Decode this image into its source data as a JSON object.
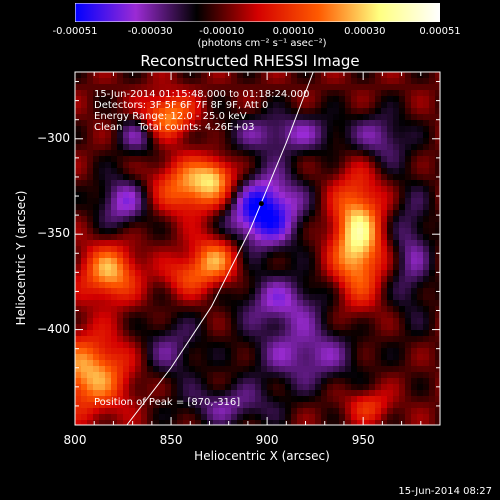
{
  "colorbar": {
    "tick_labels": [
      "-0.00051",
      "-0.00030",
      "-0.00010",
      "0.00010",
      "0.00030",
      "0.00051"
    ],
    "units_label": "(photons cm⁻² s⁻¹ asec⁻²)"
  },
  "chart_data": {
    "type": "heatmap",
    "title": "Reconstructed RHESSI Image",
    "xlabel": "Heliocentric X (arcsec)",
    "ylabel": "Heliocentric Y (arcsec)",
    "xlim": [
      800,
      990
    ],
    "ylim": [
      -450,
      -265
    ],
    "x_ticks": [
      800,
      850,
      900,
      950
    ],
    "y_ticks": [
      -300,
      -350,
      -400
    ],
    "x_tick_labels": [
      "800",
      "850",
      "900",
      "950"
    ],
    "y_tick_labels": [
      "−300",
      "−350",
      "−400"
    ],
    "value_range": [
      -0.00051,
      0.00051
    ],
    "colormap": [
      "#0000ff",
      "#9b2bd4",
      "#000000",
      "#d40000",
      "#ff5a00",
      "#ffff80",
      "#ffffff"
    ],
    "peak_position": [
      870,
      -316
    ],
    "blobs": [
      {
        "x": 848,
        "y": -288,
        "sx": 10,
        "sy": 8,
        "amp": 0.00034
      },
      {
        "x": 865,
        "y": -325,
        "sx": 16,
        "sy": 10,
        "amp": 0.00038
      },
      {
        "x": 873,
        "y": -319,
        "sx": 6,
        "sy": 6,
        "amp": 0.00016
      },
      {
        "x": 818,
        "y": -370,
        "sx": 10,
        "sy": 10,
        "amp": 0.00036
      },
      {
        "x": 873,
        "y": -363,
        "sx": 9,
        "sy": 9,
        "amp": 0.00032
      },
      {
        "x": 858,
        "y": -372,
        "sx": 9,
        "sy": 7,
        "amp": 0.00018
      },
      {
        "x": 947,
        "y": -352,
        "sx": 9,
        "sy": 21,
        "amp": 0.00046
      },
      {
        "x": 808,
        "y": -423,
        "sx": 14,
        "sy": 14,
        "amp": 0.00036
      },
      {
        "x": 953,
        "y": -440,
        "sx": 8,
        "sy": 6,
        "amp": 0.00018
      },
      {
        "x": 897,
        "y": -337,
        "sx": 14,
        "sy": 14,
        "amp": -0.00046
      },
      {
        "x": 825,
        "y": -333,
        "sx": 10,
        "sy": 10,
        "amp": -0.00025
      },
      {
        "x": 910,
        "y": -297,
        "sx": 24,
        "sy": 8,
        "amp": -0.0002
      },
      {
        "x": 960,
        "y": -300,
        "sx": 10,
        "sy": 10,
        "amp": -0.00018
      },
      {
        "x": 907,
        "y": -385,
        "sx": 16,
        "sy": 10,
        "amp": -0.00022
      },
      {
        "x": 920,
        "y": -413,
        "sx": 20,
        "sy": 12,
        "amp": -0.00022
      },
      {
        "x": 850,
        "y": -410,
        "sx": 12,
        "sy": 12,
        "amp": -0.00016
      },
      {
        "x": 880,
        "y": -440,
        "sx": 18,
        "sy": 8,
        "amp": -0.00018
      },
      {
        "x": 975,
        "y": -360,
        "sx": 8,
        "sy": 25,
        "amp": -0.00018
      },
      {
        "x": 833,
        "y": -298,
        "sx": 8,
        "sy": 8,
        "amp": -0.0002
      }
    ],
    "limb_curve": [
      [
        827,
        -450
      ],
      [
        850,
        -420
      ],
      [
        871,
        -388
      ],
      [
        891,
        -348
      ],
      [
        910,
        -302
      ],
      [
        924,
        -265
      ]
    ],
    "marker": {
      "x": 897,
      "y": -334
    }
  },
  "info_lines": [
    "15-Jun-2014 01:15:48.000 to 01:18:24.000",
    "Detectors: 3F 5F 6F 7F 8F 9F, Att 0",
    "Energy Range: 12.0 - 25.0 keV",
    "Clean     Total counts: 4.26E+03"
  ],
  "peak_label": "Position of Peak = [870,-316]",
  "footer_date": "15-Jun-2014 08:27"
}
